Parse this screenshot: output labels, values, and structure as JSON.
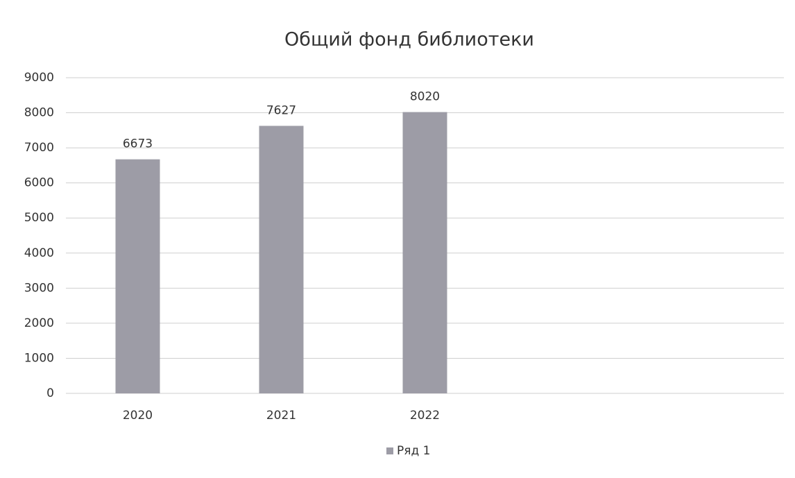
{
  "chart_data": {
    "type": "bar",
    "title": "Общий фонд библиотеки",
    "categories": [
      "2020",
      "2021",
      "2022",
      null,
      null
    ],
    "series": [
      {
        "name": "Ряд 1",
        "color": "#9d9ca6",
        "values": [
          6673,
          7627,
          8020,
          null,
          null
        ]
      }
    ],
    "ylim": [
      0,
      9000
    ],
    "yticks": [
      0,
      1000,
      2000,
      3000,
      4000,
      5000,
      6000,
      7000,
      8000,
      9000
    ],
    "grid": true,
    "legend": "bottom",
    "data_labels": true
  }
}
